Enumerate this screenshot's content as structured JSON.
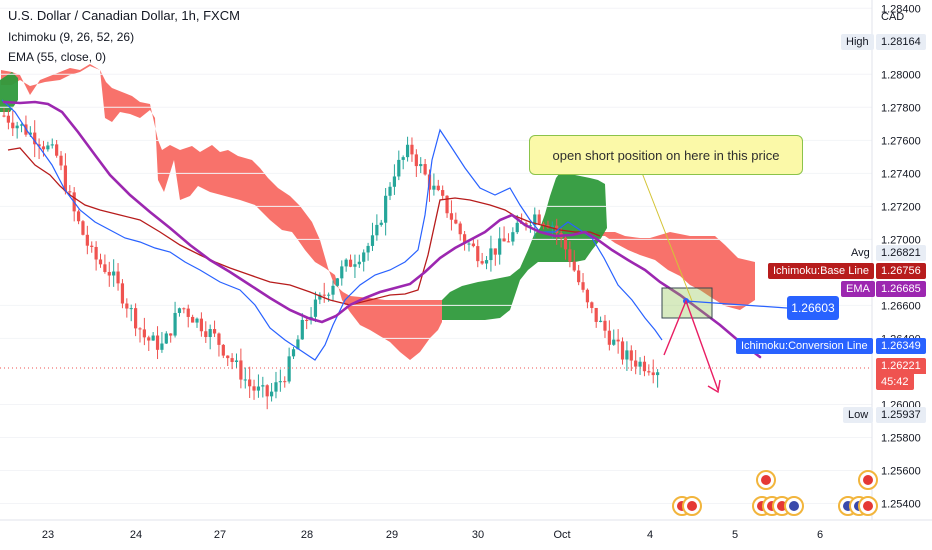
{
  "header": {
    "title": "U.S. Dollar / Canadian Dollar, 1h, FXCM",
    "indicator1": "Ichimoku (9, 26, 52, 26)",
    "indicator2": "EMA (55, close, 0)"
  },
  "price_axis": {
    "currency": "CAD",
    "ticks": [
      "1.28400",
      "1.28000",
      "1.27800",
      "1.27600",
      "1.27400",
      "1.27200",
      "1.27000",
      "1.26600",
      "1.26400",
      "1.26000",
      "1.25800",
      "1.25600",
      "1.25400"
    ]
  },
  "labels": {
    "high": {
      "label": "High",
      "value": "1.28164"
    },
    "avg": {
      "label": "Avg",
      "value": "1.26821"
    },
    "base_line": {
      "label": "Ichimoku:Base Line",
      "value": "1.26756"
    },
    "ema": {
      "label": "EMA",
      "value": "1.26685"
    },
    "conversion_line": {
      "label": "Ichimoku:Conversion Line",
      "value": "1.26349"
    },
    "last": {
      "value": "1.26221",
      "countdown": "45:42"
    },
    "low": {
      "label": "Low",
      "value": "1.25937"
    }
  },
  "annotation": {
    "text": "open short position on here in this price",
    "price": "1.26603"
  },
  "time_axis": [
    "23",
    "24",
    "27",
    "28",
    "29",
    "30",
    "Oct",
    "4",
    "5",
    "6"
  ],
  "colors": {
    "bearish_cloud": "#f7665e",
    "bullish_cloud": "#2f9a3c",
    "ema": "#9c27b0",
    "base_line": "#b71c1c",
    "conversion_line": "#2962ff",
    "up_candle": "#26a69a",
    "down_candle": "#ef5350",
    "arrow": "#e91e63"
  },
  "chart_data": {
    "type": "candlestick",
    "title": "U.S. Dollar / Canadian Dollar, 1h, FXCM",
    "ylim": [
      1.253,
      1.2845
    ],
    "x_ticks": [
      "23",
      "24",
      "27",
      "28",
      "29",
      "30",
      "Oct",
      "4",
      "5",
      "6"
    ],
    "series": [
      {
        "name": "EMA (55, close, 0)",
        "last": 1.26685
      },
      {
        "name": "Ichimoku:Base Line",
        "last": 1.26756
      },
      {
        "name": "Ichimoku:Conversion Line",
        "last": 1.26349
      }
    ],
    "approx_close_path": [
      1.2775,
      1.2768,
      1.276,
      1.275,
      1.2715,
      1.269,
      1.268,
      1.266,
      1.264,
      1.2635,
      1.266,
      1.265,
      1.264,
      1.2625,
      1.261,
      1.2605,
      1.262,
      1.265,
      1.2665,
      1.268,
      1.269,
      1.27,
      1.274,
      1.2755,
      1.2735,
      1.272,
      1.27,
      1.269,
      1.2695,
      1.2705,
      1.2715,
      1.271,
      1.269,
      1.266,
      1.2645,
      1.263,
      1.2625,
      1.2622
    ],
    "high": 1.28164,
    "low": 1.25937,
    "avg": 1.26821,
    "last": 1.26221
  }
}
